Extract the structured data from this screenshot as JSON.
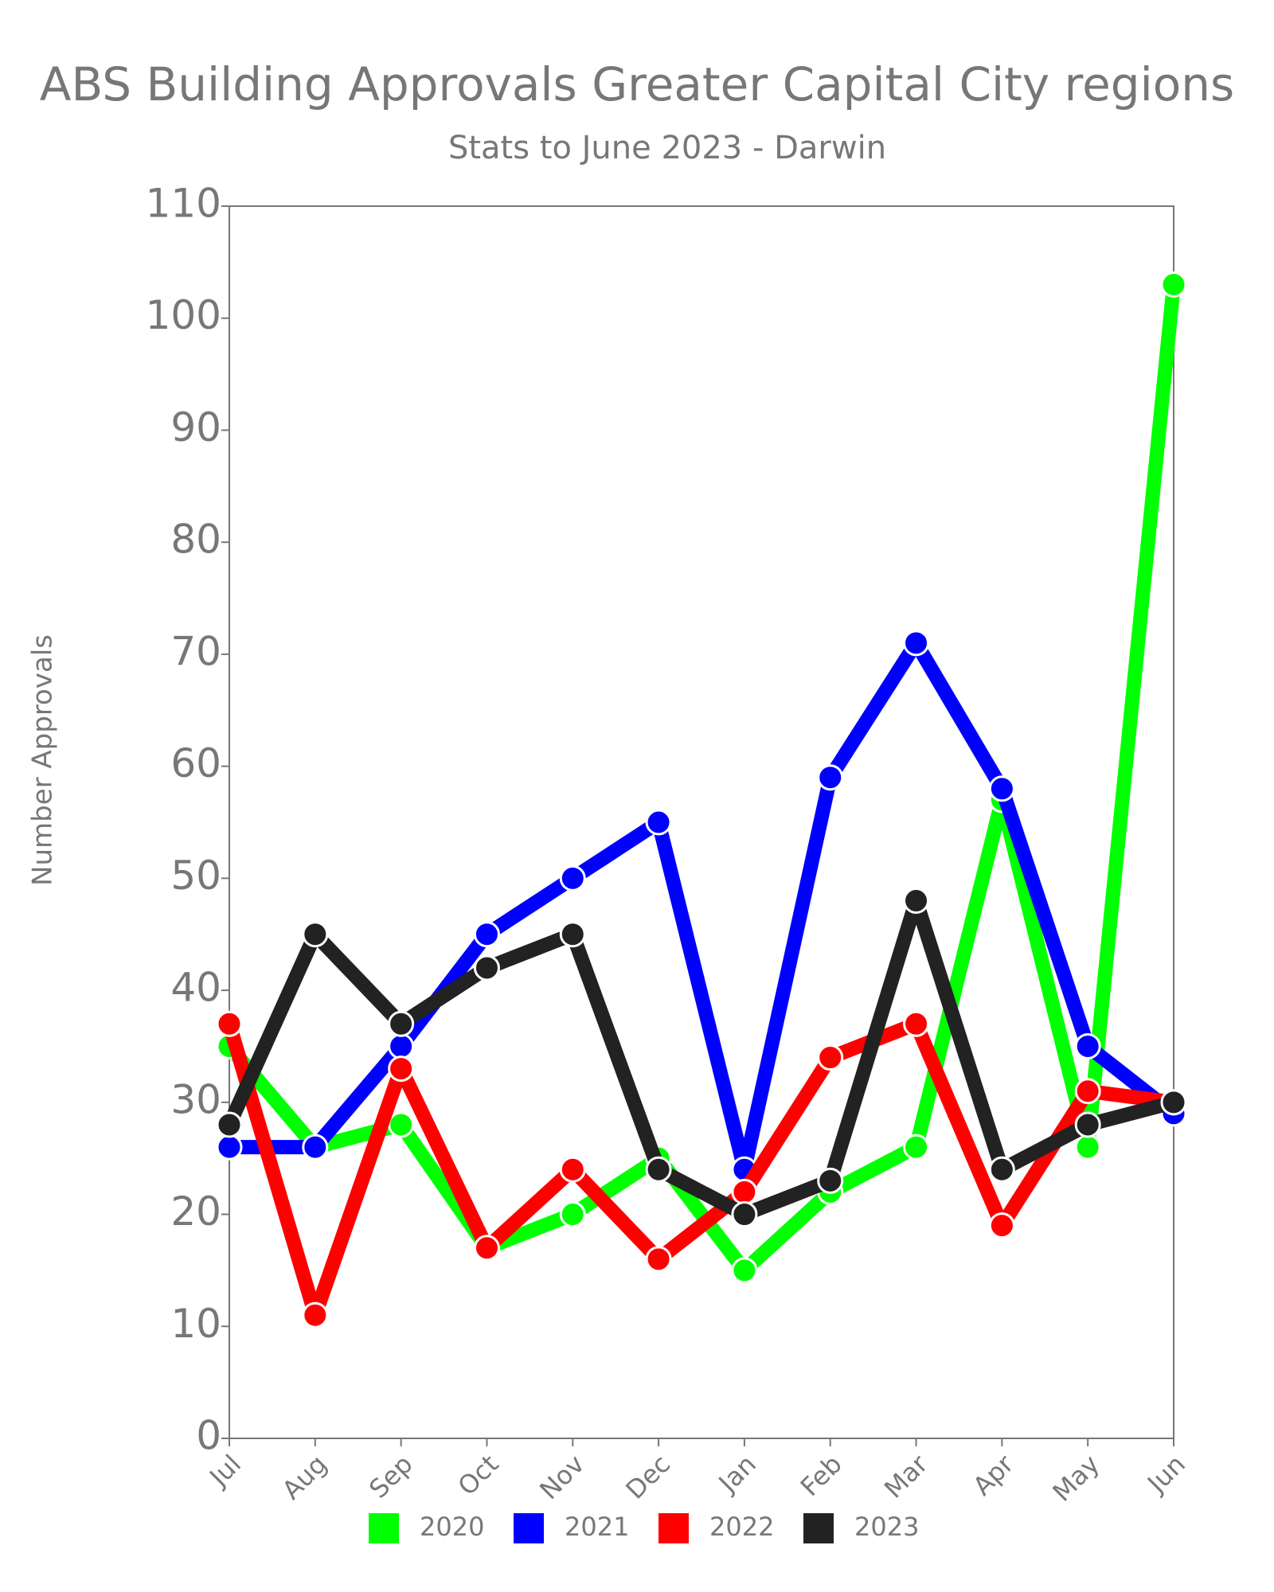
{
  "chart_data": {
    "type": "line",
    "title": "ABS Building Approvals Greater Capital City regions",
    "subtitle": "Stats to June 2023 - Darwin",
    "y_label": "Number Approvals",
    "categories": [
      "Jul",
      "Aug",
      "Sep",
      "Oct",
      "Nov",
      "Dec",
      "Jan",
      "Feb",
      "Mar",
      "Apr",
      "May",
      "Jun"
    ],
    "series": [
      {
        "name": "2020",
        "color": "#00ff00",
        "values": [
          35,
          26,
          28,
          17,
          20,
          25,
          15,
          22,
          26,
          57,
          26,
          103
        ]
      },
      {
        "name": "2021",
        "color": "#0000ff",
        "values": [
          26,
          26,
          35,
          45,
          50,
          55,
          24,
          59,
          71,
          58,
          35,
          29
        ]
      },
      {
        "name": "2022",
        "color": "#ff0000",
        "values": [
          37,
          11,
          33,
          17,
          24,
          16,
          22,
          34,
          37,
          19,
          31,
          30
        ]
      },
      {
        "name": "2023",
        "color": "#222222",
        "values": [
          28,
          45,
          37,
          42,
          45,
          24,
          20,
          23,
          48,
          24,
          28,
          30
        ]
      }
    ],
    "ylim": [
      0,
      110
    ],
    "yticks": [
      0,
      10,
      20,
      30,
      40,
      50,
      60,
      70,
      80,
      90,
      100,
      110
    ],
    "legend": "bottom"
  }
}
